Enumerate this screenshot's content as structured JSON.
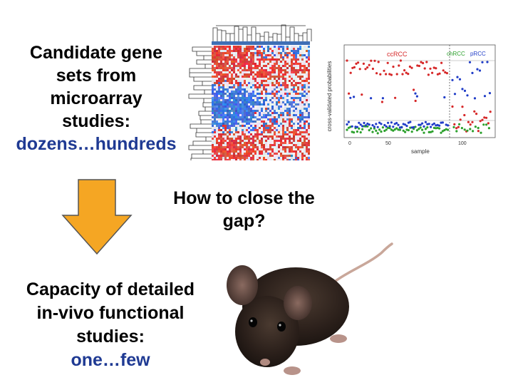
{
  "top_text": {
    "line1": "Candidate gene",
    "line2": "sets from",
    "line3": "microarray",
    "line4": "studies:",
    "highlight": "dozens…hundreds"
  },
  "question": {
    "line1": "How to close the",
    "line2": "gap?"
  },
  "bottom_text": {
    "line1": "Capacity of detailed",
    "line2": "in-vivo functional",
    "line3": "studies:",
    "highlight": "one…few"
  },
  "scatter_plot": {
    "labels": [
      "ccRCC",
      "chRCC",
      "pRCC"
    ],
    "xlabel": "sample",
    "x_ticks": [
      "0",
      "50",
      "100"
    ],
    "ylabel": "cross-validated probabilities",
    "colors": {
      "ccRCC": "#d62728",
      "chRCC": "#2ca02c",
      "pRCC": "#1f3cc7"
    }
  },
  "colors": {
    "arrow_fill": "#f5a623",
    "arrow_stroke": "#555555",
    "accent_text": "#1f3a93"
  }
}
